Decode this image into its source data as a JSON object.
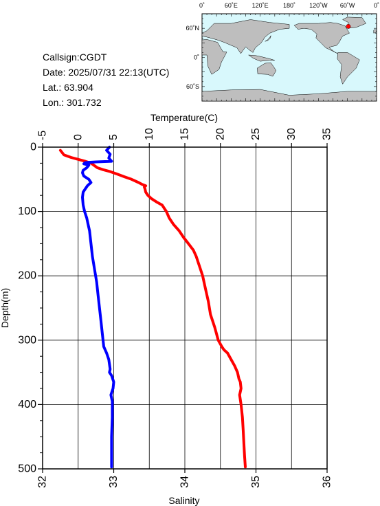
{
  "info": {
    "callsign": "Callsign:CGDT",
    "date": "Date:  2025/07/31 22:13(UTC)",
    "lat": "Lat.:  63.904",
    "lon": "Lon.:  301.732"
  },
  "map": {
    "lon_labels": [
      "0˚",
      "60˚E",
      "120˚E",
      "180˚",
      "120˚W",
      "60˚W",
      "0˚"
    ],
    "lat_labels": [
      "60˚N",
      "0˚",
      "60˚S"
    ],
    "ocean_color": "#d8f8fc",
    "land_color": "#bebebe",
    "marker_color": "#ff0000",
    "marker": {
      "lat": 63.904,
      "lon": 301.732
    }
  },
  "chart_data": {
    "type": "line",
    "ylabel": "Depth(m)",
    "ylim": [
      0,
      500
    ],
    "y_inverted": true,
    "y_ticks": [
      0,
      100,
      200,
      300,
      400,
      500
    ],
    "grid": true,
    "temperature_axis": {
      "label": "Temperature(C)",
      "position": "top",
      "range": [
        -5,
        35
      ],
      "ticks": [
        -5,
        0,
        5,
        10,
        15,
        20,
        25,
        30,
        35
      ]
    },
    "salinity_axis": {
      "label": "Salinity",
      "position": "bottom",
      "range": [
        32,
        36
      ],
      "ticks": [
        32,
        33,
        34,
        35,
        36
      ]
    },
    "series": [
      {
        "axis": "temperature",
        "color": "#ff0000",
        "points": [
          [
            -2.5,
            5
          ],
          [
            -2.0,
            12
          ],
          [
            -1.0,
            16
          ],
          [
            0,
            19
          ],
          [
            1.0,
            22
          ],
          [
            1.8,
            25
          ],
          [
            2.2,
            28
          ],
          [
            2.7,
            32
          ],
          [
            3.5,
            35
          ],
          [
            4.5,
            38
          ],
          [
            5.5,
            42
          ],
          [
            6.5,
            46
          ],
          [
            7.5,
            50
          ],
          [
            8.5,
            55
          ],
          [
            9.0,
            58
          ],
          [
            9.5,
            60
          ],
          [
            9.3,
            62
          ],
          [
            9.4,
            65
          ],
          [
            9.5,
            70
          ],
          [
            9.8,
            75
          ],
          [
            10.3,
            80
          ],
          [
            11.0,
            85
          ],
          [
            11.8,
            90
          ],
          [
            12.4,
            100
          ],
          [
            12.8,
            110
          ],
          [
            13.4,
            120
          ],
          [
            14.2,
            130
          ],
          [
            14.8,
            140
          ],
          [
            15.5,
            150
          ],
          [
            16.2,
            160
          ],
          [
            16.6,
            170
          ],
          [
            16.9,
            180
          ],
          [
            17.2,
            190
          ],
          [
            17.5,
            200
          ],
          [
            17.9,
            220
          ],
          [
            18.3,
            240
          ],
          [
            18.6,
            260
          ],
          [
            19.2,
            280
          ],
          [
            19.7,
            300
          ],
          [
            20.2,
            310
          ],
          [
            20.5,
            315
          ],
          [
            21.0,
            320
          ],
          [
            21.5,
            330
          ],
          [
            22.0,
            340
          ],
          [
            22.4,
            350
          ],
          [
            22.6,
            360
          ],
          [
            22.8,
            365
          ],
          [
            22.9,
            375
          ],
          [
            22.7,
            385
          ],
          [
            22.9,
            400
          ],
          [
            23.1,
            420
          ],
          [
            23.2,
            440
          ],
          [
            23.3,
            460
          ],
          [
            23.4,
            480
          ],
          [
            23.5,
            497
          ]
        ]
      },
      {
        "axis": "salinity",
        "color": "#0000ff",
        "points": [
          [
            32.94,
            0
          ],
          [
            32.9,
            5
          ],
          [
            32.95,
            11
          ],
          [
            32.93,
            17
          ],
          [
            32.97,
            22
          ],
          [
            32.75,
            23
          ],
          [
            32.6,
            24
          ],
          [
            32.58,
            26
          ],
          [
            32.65,
            28
          ],
          [
            32.62,
            32
          ],
          [
            32.57,
            36
          ],
          [
            32.56,
            40
          ],
          [
            32.58,
            45
          ],
          [
            32.65,
            50
          ],
          [
            32.68,
            55
          ],
          [
            32.63,
            60
          ],
          [
            32.6,
            65
          ],
          [
            32.57,
            70
          ],
          [
            32.56,
            78
          ],
          [
            32.57,
            90
          ],
          [
            32.59,
            100
          ],
          [
            32.62,
            110
          ],
          [
            32.64,
            120
          ],
          [
            32.66,
            130
          ],
          [
            32.68,
            150
          ],
          [
            32.7,
            170
          ],
          [
            32.73,
            190
          ],
          [
            32.76,
            210
          ],
          [
            32.78,
            230
          ],
          [
            32.8,
            250
          ],
          [
            32.82,
            270
          ],
          [
            32.84,
            290
          ],
          [
            32.86,
            310
          ],
          [
            32.9,
            320
          ],
          [
            32.93,
            330
          ],
          [
            32.95,
            345
          ],
          [
            32.94,
            350
          ],
          [
            32.97,
            355
          ],
          [
            33.0,
            365
          ],
          [
            32.99,
            375
          ],
          [
            32.96,
            385
          ],
          [
            32.98,
            395
          ],
          [
            32.98,
            420
          ],
          [
            32.97,
            450
          ],
          [
            32.97,
            480
          ],
          [
            32.97,
            497
          ]
        ]
      }
    ]
  }
}
